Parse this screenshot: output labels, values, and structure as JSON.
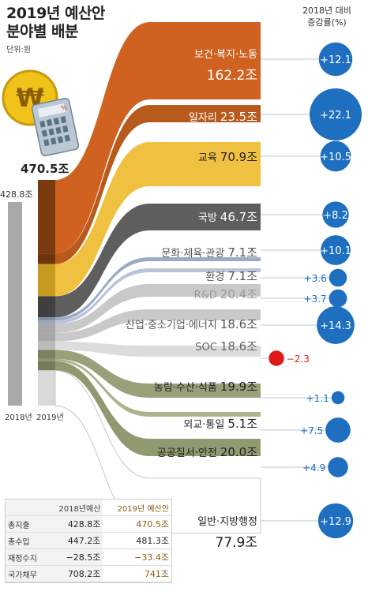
{
  "title_line1": "2019년 예산안",
  "title_line2": "분야별 배분",
  "unit_label": "단위:원",
  "growth_header_line1": "2018년 대비",
  "growth_header_line2": "증감률(%)",
  "icon_symbols": {
    "coin": "₩",
    "calculator_key": "%"
  },
  "colors": {
    "health": "#cf6220",
    "jobs": "#b85a1c",
    "edu": "#f0c040",
    "defense": "#5e5e5e",
    "culture": "#9aabc6",
    "env": "#b9c4d6",
    "rnd": "#c9c9c9",
    "industry": "#c9c9c9",
    "soc": "#dcdcdc",
    "agri": "#9aa17a",
    "foreign": "#adb38d",
    "safety": "#8f9a70",
    "admin": "#ffffff",
    "bubble": "#1e6fbf",
    "negative": "#e11818"
  },
  "chart_data": {
    "type": "sankey",
    "total_2019_label": "470.5조",
    "total_2018_label": "428.8조",
    "axis_labels": [
      "2018년",
      "2019년"
    ],
    "categories": [
      {
        "name": "보건·복지·노동",
        "value_label": "162.2조",
        "value": 162.2,
        "growth": 12.1,
        "growth_label": "+12.1"
      },
      {
        "name": "일자리",
        "value_label": "23.5조",
        "value": 23.5,
        "growth": 22.1,
        "growth_label": "+22.1"
      },
      {
        "name": "교육",
        "value_label": "70.9조",
        "value": 70.9,
        "growth": 10.5,
        "growth_label": "+10.5"
      },
      {
        "name": "국방",
        "value_label": "46.7조",
        "value": 46.7,
        "growth": 8.2,
        "growth_label": "+8.2"
      },
      {
        "name": "문화·체육·관광",
        "value_label": "7.1조",
        "value": 7.1,
        "growth": 10.1,
        "growth_label": "+10.1"
      },
      {
        "name": "환경",
        "value_label": "7.1조",
        "value": 7.1,
        "growth": 3.6,
        "growth_label": "+3.6"
      },
      {
        "name": "R&D",
        "value_label": "20.4조",
        "value": 20.4,
        "growth": 3.7,
        "growth_label": "+3.7"
      },
      {
        "name": "산업·중소기업·에너지",
        "value_label": "18.6조",
        "value": 18.6,
        "growth": 14.3,
        "growth_label": "+14.3"
      },
      {
        "name": "SOC",
        "value_label": "18.6조",
        "value": 18.6,
        "growth": -2.3,
        "growth_label": "−2.3"
      },
      {
        "name": "농림·수산·식품",
        "value_label": "19.9조",
        "value": 19.9,
        "growth": 1.1,
        "growth_label": "+1.1"
      },
      {
        "name": "외교·통일",
        "value_label": "5.1조",
        "value": 5.1,
        "growth": 7.5,
        "growth_label": "+7.5"
      },
      {
        "name": "공공질서·안전",
        "value_label": "20.0조",
        "value": 20.0,
        "growth": 4.9,
        "growth_label": "+4.9"
      },
      {
        "name": "일반·지방행정",
        "value_label": "77.9조",
        "value": 77.9,
        "growth": 12.9,
        "growth_label": "+12.9"
      }
    ]
  },
  "summary_table": {
    "headers": [
      "",
      "2018년예산",
      "2019년 예산안"
    ],
    "rows": [
      {
        "label": "총지출",
        "y2018": "428.8조",
        "y2019": "470.5조"
      },
      {
        "label": "총수입",
        "y2018": "447.2조",
        "y2019": "481.3조"
      },
      {
        "label": "재정수지",
        "y2018": "−28.5조",
        "y2019": "−33.4조"
      },
      {
        "label": "국가채무",
        "y2018": "708.2조",
        "y2019": "741조"
      }
    ]
  }
}
